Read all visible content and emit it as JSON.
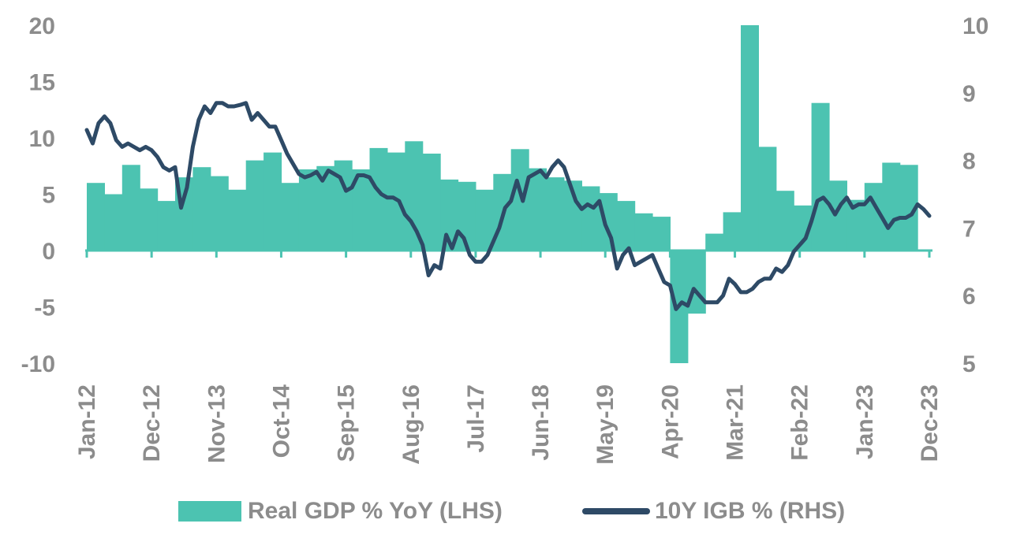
{
  "chart_data": {
    "type": "area+line",
    "title": "",
    "colors": {
      "gdp": "#4cc3b1",
      "igb": "#2e4a66",
      "ticks": "#8c8c8c"
    },
    "axes": {
      "left": {
        "min": -10,
        "max": 20,
        "ticks": [
          20,
          15,
          10,
          5,
          0,
          -5,
          -10
        ]
      },
      "right": {
        "min": 5,
        "max": 10,
        "ticks": [
          10,
          9,
          8,
          7,
          6,
          5
        ]
      },
      "x_ticks": [
        "Jan-12",
        "Dec-12",
        "Nov-13",
        "Oct-14",
        "Sep-15",
        "Aug-16",
        "Jul-17",
        "Jun-18",
        "May-19",
        "Apr-20",
        "Mar-21",
        "Feb-22",
        "Jan-23",
        "Dec-23"
      ]
    },
    "legend": {
      "gdp_label": "Real GDP % YoY (LHS)",
      "igb_label": "10Y IGB % (RHS)",
      "position": "bottom"
    },
    "gdp_series": {
      "name": "Real GDP % YoY (LHS)",
      "points": [
        [
          "2012-01",
          6.0
        ],
        [
          "2012-04",
          5.0
        ],
        [
          "2012-07",
          7.6
        ],
        [
          "2012-10",
          5.5
        ],
        [
          "2013-01",
          4.4
        ],
        [
          "2013-04",
          6.5
        ],
        [
          "2013-07",
          7.4
        ],
        [
          "2013-10",
          6.6
        ],
        [
          "2014-01",
          5.4
        ],
        [
          "2014-04",
          8.0
        ],
        [
          "2014-07",
          8.7
        ],
        [
          "2014-10",
          6.0
        ],
        [
          "2015-01",
          7.2
        ],
        [
          "2015-04",
          7.5
        ],
        [
          "2015-07",
          8.0
        ],
        [
          "2015-10",
          7.2
        ],
        [
          "2016-01",
          9.1
        ],
        [
          "2016-04",
          8.7
        ],
        [
          "2016-07",
          9.7
        ],
        [
          "2016-10",
          8.6
        ],
        [
          "2017-01",
          6.3
        ],
        [
          "2017-04",
          6.1
        ],
        [
          "2017-07",
          5.4
        ],
        [
          "2017-10",
          6.8
        ],
        [
          "2018-01",
          9.0
        ],
        [
          "2018-04",
          7.3
        ],
        [
          "2018-07",
          6.5
        ],
        [
          "2018-10",
          6.2
        ],
        [
          "2019-01",
          5.7
        ],
        [
          "2019-04",
          5.1
        ],
        [
          "2019-07",
          4.4
        ],
        [
          "2019-10",
          3.3
        ],
        [
          "2020-01",
          3.0
        ],
        [
          "2020-04",
          -10.0
        ],
        [
          "2020-07",
          -5.6
        ],
        [
          "2020-10",
          1.5
        ],
        [
          "2021-01",
          3.4
        ],
        [
          "2021-04",
          20.0
        ],
        [
          "2021-07",
          9.2
        ],
        [
          "2021-10",
          5.3
        ],
        [
          "2022-01",
          4.0
        ],
        [
          "2022-04",
          13.1
        ],
        [
          "2022-07",
          6.2
        ],
        [
          "2022-10",
          4.5
        ],
        [
          "2023-01",
          6.0
        ],
        [
          "2023-04",
          7.8
        ],
        [
          "2023-07",
          7.6
        ],
        [
          "2023-10",
          0
        ]
      ]
    },
    "igb_series": {
      "name": "10Y IGB % (RHS)",
      "points": [
        [
          "2012-01",
          8.45
        ],
        [
          "2012-02",
          8.25
        ],
        [
          "2012-03",
          8.55
        ],
        [
          "2012-04",
          8.65
        ],
        [
          "2012-05",
          8.55
        ],
        [
          "2012-06",
          8.3
        ],
        [
          "2012-07",
          8.2
        ],
        [
          "2012-08",
          8.25
        ],
        [
          "2012-09",
          8.2
        ],
        [
          "2012-10",
          8.15
        ],
        [
          "2012-11",
          8.2
        ],
        [
          "2012-12",
          8.15
        ],
        [
          "2013-01",
          8.05
        ],
        [
          "2013-02",
          7.9
        ],
        [
          "2013-03",
          7.85
        ],
        [
          "2013-04",
          7.9
        ],
        [
          "2013-05",
          7.3
        ],
        [
          "2013-06",
          7.6
        ],
        [
          "2013-07",
          8.2
        ],
        [
          "2013-08",
          8.6
        ],
        [
          "2013-09",
          8.8
        ],
        [
          "2013-10",
          8.7
        ],
        [
          "2013-11",
          8.85
        ],
        [
          "2013-12",
          8.85
        ],
        [
          "2014-01",
          8.8
        ],
        [
          "2014-02",
          8.8
        ],
        [
          "2014-03",
          8.82
        ],
        [
          "2014-04",
          8.85
        ],
        [
          "2014-05",
          8.6
        ],
        [
          "2014-06",
          8.7
        ],
        [
          "2014-07",
          8.6
        ],
        [
          "2014-08",
          8.5
        ],
        [
          "2014-09",
          8.5
        ],
        [
          "2014-10",
          8.3
        ],
        [
          "2014-11",
          8.1
        ],
        [
          "2014-12",
          7.95
        ],
        [
          "2015-01",
          7.8
        ],
        [
          "2015-02",
          7.75
        ],
        [
          "2015-03",
          7.78
        ],
        [
          "2015-04",
          7.83
        ],
        [
          "2015-05",
          7.7
        ],
        [
          "2015-06",
          7.85
        ],
        [
          "2015-07",
          7.8
        ],
        [
          "2015-08",
          7.75
        ],
        [
          "2015-09",
          7.55
        ],
        [
          "2015-10",
          7.6
        ],
        [
          "2015-11",
          7.78
        ],
        [
          "2015-12",
          7.78
        ],
        [
          "2016-01",
          7.75
        ],
        [
          "2016-02",
          7.6
        ],
        [
          "2016-03",
          7.5
        ],
        [
          "2016-04",
          7.45
        ],
        [
          "2016-05",
          7.45
        ],
        [
          "2016-06",
          7.4
        ],
        [
          "2016-07",
          7.2
        ],
        [
          "2016-08",
          7.1
        ],
        [
          "2016-09",
          6.95
        ],
        [
          "2016-10",
          6.75
        ],
        [
          "2016-11",
          6.3
        ],
        [
          "2016-12",
          6.45
        ],
        [
          "2017-01",
          6.4
        ],
        [
          "2017-02",
          6.9
        ],
        [
          "2017-03",
          6.7
        ],
        [
          "2017-04",
          6.95
        ],
        [
          "2017-05",
          6.85
        ],
        [
          "2017-06",
          6.6
        ],
        [
          "2017-07",
          6.5
        ],
        [
          "2017-08",
          6.5
        ],
        [
          "2017-09",
          6.6
        ],
        [
          "2017-10",
          6.8
        ],
        [
          "2017-11",
          7.0
        ],
        [
          "2017-12",
          7.3
        ],
        [
          "2018-01",
          7.4
        ],
        [
          "2018-02",
          7.7
        ],
        [
          "2018-03",
          7.4
        ],
        [
          "2018-04",
          7.75
        ],
        [
          "2018-05",
          7.8
        ],
        [
          "2018-06",
          7.85
        ],
        [
          "2018-07",
          7.75
        ],
        [
          "2018-08",
          7.9
        ],
        [
          "2018-09",
          8.0
        ],
        [
          "2018-10",
          7.9
        ],
        [
          "2018-11",
          7.65
        ],
        [
          "2018-12",
          7.4
        ],
        [
          "2019-01",
          7.28
        ],
        [
          "2019-02",
          7.35
        ],
        [
          "2019-03",
          7.3
        ],
        [
          "2019-04",
          7.4
        ],
        [
          "2019-05",
          7.05
        ],
        [
          "2019-06",
          6.85
        ],
        [
          "2019-07",
          6.4
        ],
        [
          "2019-08",
          6.6
        ],
        [
          "2019-09",
          6.7
        ],
        [
          "2019-10",
          6.45
        ],
        [
          "2019-11",
          6.5
        ],
        [
          "2019-12",
          6.55
        ],
        [
          "2020-01",
          6.6
        ],
        [
          "2020-02",
          6.4
        ],
        [
          "2020-03",
          6.2
        ],
        [
          "2020-04",
          6.15
        ],
        [
          "2020-05",
          5.8
        ],
        [
          "2020-06",
          5.9
        ],
        [
          "2020-07",
          5.85
        ],
        [
          "2020-08",
          6.1
        ],
        [
          "2020-09",
          6.0
        ],
        [
          "2020-10",
          5.9
        ],
        [
          "2020-11",
          5.9
        ],
        [
          "2020-12",
          5.9
        ],
        [
          "2021-01",
          6.0
        ],
        [
          "2021-02",
          6.25
        ],
        [
          "2021-03",
          6.17
        ],
        [
          "2021-04",
          6.05
        ],
        [
          "2021-05",
          6.05
        ],
        [
          "2021-06",
          6.1
        ],
        [
          "2021-07",
          6.2
        ],
        [
          "2021-08",
          6.25
        ],
        [
          "2021-09",
          6.25
        ],
        [
          "2021-10",
          6.4
        ],
        [
          "2021-11",
          6.35
        ],
        [
          "2021-12",
          6.45
        ],
        [
          "2022-01",
          6.65
        ],
        [
          "2022-02",
          6.75
        ],
        [
          "2022-03",
          6.85
        ],
        [
          "2022-04",
          7.1
        ],
        [
          "2022-05",
          7.4
        ],
        [
          "2022-06",
          7.45
        ],
        [
          "2022-07",
          7.35
        ],
        [
          "2022-08",
          7.2
        ],
        [
          "2022-09",
          7.35
        ],
        [
          "2022-10",
          7.45
        ],
        [
          "2022-11",
          7.3
        ],
        [
          "2022-12",
          7.35
        ],
        [
          "2023-01",
          7.35
        ],
        [
          "2023-02",
          7.45
        ],
        [
          "2023-03",
          7.3
        ],
        [
          "2023-04",
          7.15
        ],
        [
          "2023-05",
          7.0
        ],
        [
          "2023-06",
          7.12
        ],
        [
          "2023-07",
          7.15
        ],
        [
          "2023-08",
          7.15
        ],
        [
          "2023-09",
          7.2
        ],
        [
          "2023-10",
          7.35
        ],
        [
          "2023-11",
          7.28
        ],
        [
          "2023-12",
          7.18
        ]
      ]
    }
  }
}
